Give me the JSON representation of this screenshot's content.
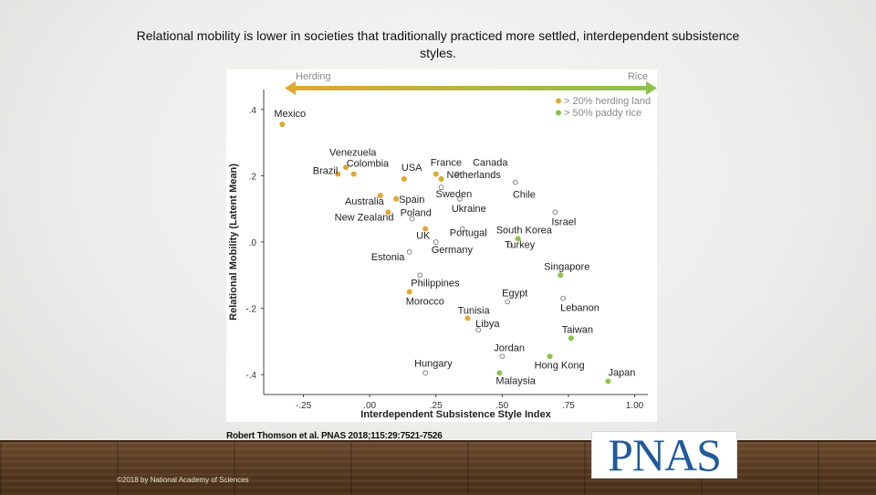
{
  "slide": {
    "title": "Relational mobility is lower in societies that traditionally practiced more settled, interdependent subsistence styles.",
    "citation": "Robert Thomson et al. PNAS 2018;115:29:7521-7526",
    "copyright": "©2018 by National Academy of Sciences",
    "logo_text": "PNAS"
  },
  "colors": {
    "herding": "#e0a82e",
    "rice": "#8bc34a",
    "open": "#777777",
    "axis": "#444444"
  },
  "chart_data": {
    "type": "scatter",
    "title": "",
    "xlabel": "Interdependent Subsistence Style Index",
    "ylabel": "Relational Mobility (Latent Mean)",
    "xlim": [
      -0.4,
      1.05
    ],
    "ylim": [
      -0.46,
      0.46
    ],
    "xticks": [
      -0.25,
      0.0,
      0.25,
      0.5,
      0.75,
      1.0
    ],
    "xtick_labels": [
      "-.25",
      ".00",
      ".25",
      ".50",
      ".75",
      "1.00"
    ],
    "yticks": [
      0.4,
      0.2,
      0.0,
      -0.2,
      -0.4
    ],
    "ytick_labels": [
      ".4",
      ".2",
      ".0",
      "-.2",
      "-.4"
    ],
    "arrow": {
      "left_label": "Herding",
      "right_label": "Rice"
    },
    "legend": {
      "position": "top-right",
      "entries": [
        {
          "label": "> 20% herding land",
          "group": "herding"
        },
        {
          "label": "> 50% paddy rice",
          "group": "rice"
        }
      ]
    },
    "points": [
      {
        "label": "Mexico",
        "x": -0.33,
        "y": 0.355,
        "group": "herding",
        "anchor": "start",
        "dx": -9,
        "dy": -8
      },
      {
        "label": "Venezuela",
        "x": -0.09,
        "y": 0.225,
        "group": "herding",
        "anchor": "start",
        "dx": -18,
        "dy": -13
      },
      {
        "label": "Brazil",
        "x": -0.12,
        "y": 0.205,
        "group": "herding",
        "anchor": "end",
        "dx": 0,
        "dy": 0
      },
      {
        "label": "Colombia",
        "x": -0.06,
        "y": 0.205,
        "group": "herding",
        "anchor": "start",
        "dx": -8,
        "dy": -8
      },
      {
        "label": "USA",
        "x": 0.13,
        "y": 0.19,
        "group": "herding",
        "anchor": "start",
        "dx": -3,
        "dy": -9
      },
      {
        "label": "France",
        "x": 0.25,
        "y": 0.205,
        "group": "herding",
        "anchor": "start",
        "dx": -6,
        "dy": -9
      },
      {
        "label": "Canada",
        "x": 0.33,
        "y": 0.205,
        "group": "open",
        "anchor": "start",
        "dx": 17,
        "dy": -9
      },
      {
        "label": "Netherlands",
        "x": 0.27,
        "y": 0.19,
        "group": "herding",
        "anchor": "start",
        "dx": 6,
        "dy": -1
      },
      {
        "label": "Sweden",
        "x": 0.27,
        "y": 0.165,
        "group": "open",
        "anchor": "start",
        "dx": -6,
        "dy": 11
      },
      {
        "label": "Chile",
        "x": 0.55,
        "y": 0.18,
        "group": "open",
        "anchor": "start",
        "dx": -3,
        "dy": 17
      },
      {
        "label": "Australia",
        "x": 0.04,
        "y": 0.14,
        "group": "herding",
        "anchor": "end",
        "dx": 4,
        "dy": 10
      },
      {
        "label": "Spain",
        "x": 0.1,
        "y": 0.13,
        "group": "herding",
        "anchor": "start",
        "dx": 3,
        "dy": 4
      },
      {
        "label": "Ukraine",
        "x": 0.34,
        "y": 0.13,
        "group": "open",
        "anchor": "start",
        "dx": -9,
        "dy": 14
      },
      {
        "label": "Israel",
        "x": 0.7,
        "y": 0.09,
        "group": "open",
        "anchor": "start",
        "dx": -4,
        "dy": 14
      },
      {
        "label": "New Zealand",
        "x": 0.07,
        "y": 0.09,
        "group": "herding",
        "anchor": "end",
        "dx": 6,
        "dy": 9
      },
      {
        "label": "Poland",
        "x": 0.16,
        "y": 0.07,
        "group": "open",
        "anchor": "start",
        "dx": -13,
        "dy": -3
      },
      {
        "label": "UK",
        "x": 0.21,
        "y": 0.04,
        "group": "herding",
        "anchor": "start",
        "dx": -10,
        "dy": 11
      },
      {
        "label": "Portugal",
        "x": 0.35,
        "y": 0.04,
        "group": "open",
        "anchor": "start",
        "dx": -14,
        "dy": 8
      },
      {
        "label": "South Korea",
        "x": 0.56,
        "y": 0.01,
        "group": "rice",
        "anchor": "start",
        "dx": -24,
        "dy": -6
      },
      {
        "label": "Estonia",
        "x": 0.15,
        "y": -0.03,
        "group": "open",
        "anchor": "start",
        "dx": -42,
        "dy": 9
      },
      {
        "label": "Germany",
        "x": 0.25,
        "y": 0.0,
        "group": "open",
        "anchor": "start",
        "dx": -5,
        "dy": 12
      },
      {
        "label": "Turkey",
        "x": 0.53,
        "y": -0.01,
        "group": "open",
        "anchor": "start",
        "dx": -6,
        "dy": 3
      },
      {
        "label": "Philippines",
        "x": 0.19,
        "y": -0.1,
        "group": "open",
        "anchor": "start",
        "dx": -10,
        "dy": 12
      },
      {
        "label": "Singapore",
        "x": 0.72,
        "y": -0.1,
        "group": "rice",
        "anchor": "start",
        "dx": -18,
        "dy": -6
      },
      {
        "label": "Morocco",
        "x": 0.15,
        "y": -0.15,
        "group": "herding",
        "anchor": "start",
        "dx": -4,
        "dy": 14
      },
      {
        "label": "Egypt",
        "x": 0.52,
        "y": -0.18,
        "group": "open",
        "anchor": "start",
        "dx": -6,
        "dy": -6
      },
      {
        "label": "Lebanon",
        "x": 0.73,
        "y": -0.17,
        "group": "open",
        "anchor": "start",
        "dx": -3,
        "dy": 14
      },
      {
        "label": "Tunisia",
        "x": 0.37,
        "y": -0.23,
        "group": "herding",
        "anchor": "start",
        "dx": -11,
        "dy": -5
      },
      {
        "label": "Libya",
        "x": 0.41,
        "y": -0.265,
        "group": "open",
        "anchor": "start",
        "dx": -3,
        "dy": -3
      },
      {
        "label": "Taiwan",
        "x": 0.76,
        "y": -0.29,
        "group": "rice",
        "anchor": "start",
        "dx": -10,
        "dy": -6
      },
      {
        "label": "Jordan",
        "x": 0.5,
        "y": -0.345,
        "group": "open",
        "anchor": "start",
        "dx": -9,
        "dy": -6
      },
      {
        "label": "Hungary",
        "x": 0.21,
        "y": -0.395,
        "group": "open",
        "anchor": "start",
        "dx": -12,
        "dy": -7
      },
      {
        "label": "Hong Kong",
        "x": 0.68,
        "y": -0.345,
        "group": "rice",
        "anchor": "start",
        "dx": -17,
        "dy": 13
      },
      {
        "label": "Malaysia",
        "x": 0.49,
        "y": -0.395,
        "group": "rice",
        "anchor": "start",
        "dx": -4,
        "dy": 12
      },
      {
        "label": "Japan",
        "x": 0.9,
        "y": -0.42,
        "group": "rice",
        "anchor": "start",
        "dx": 0,
        "dy": -6
      }
    ]
  }
}
